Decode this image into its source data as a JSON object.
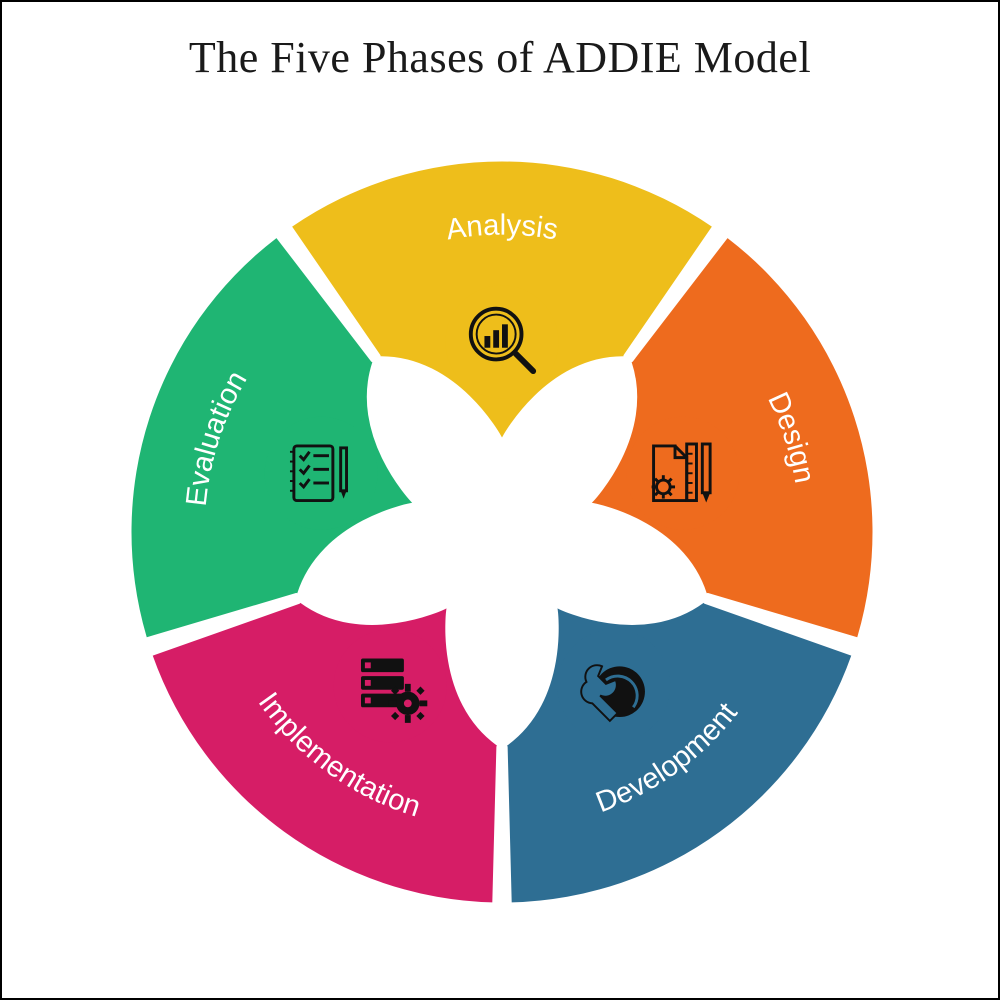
{
  "title": "The Five Phases of ADDIE Model",
  "title_fontsize": 44,
  "title_color": "#1a1a1a",
  "background_color": "#ffffff",
  "frame_border_color": "#000000",
  "diagram": {
    "type": "circular-segmented",
    "segment_count": 5,
    "outer_radius": 380,
    "inner_radius": 220,
    "icon_circle_radius": 58,
    "icon_orbit_radius": 195,
    "label_orbit_radius": 305,
    "gap_degrees": 3,
    "label_color": "#ffffff",
    "label_fontsize": 30,
    "label_font_family": "Segoe UI, Arial, sans-serif",
    "icon_stroke_color": "#111111",
    "segments": [
      {
        "label": "Analysis",
        "color": "#eebe1b",
        "icon": "magnifier-chart-icon",
        "angle_center_deg": -90
      },
      {
        "label": "Design",
        "color": "#ee6b1e",
        "icon": "design-tools-icon",
        "angle_center_deg": -18
      },
      {
        "label": "Development",
        "color": "#2e6e93",
        "icon": "wrench-globe-icon",
        "angle_center_deg": 54
      },
      {
        "label": "Implementation",
        "color": "#d61d66",
        "icon": "server-gear-icon",
        "angle_center_deg": 126
      },
      {
        "label": "Evaluation",
        "color": "#1fb573",
        "icon": "checklist-icon",
        "angle_center_deg": 198
      }
    ]
  }
}
